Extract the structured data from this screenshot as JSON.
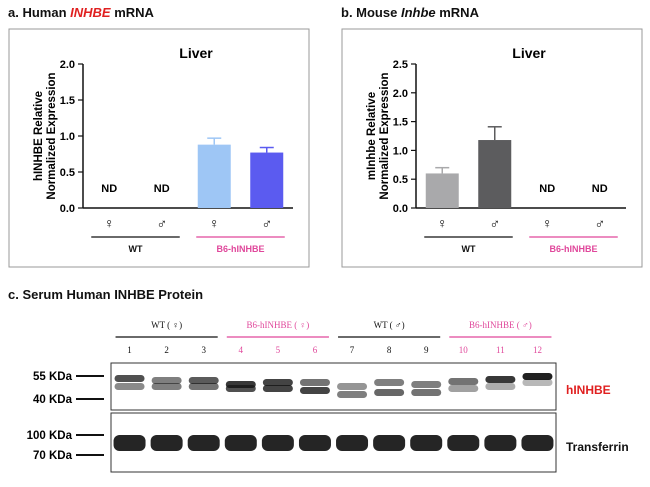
{
  "panels": {
    "a": {
      "title_prefix": "a. Human ",
      "title_gene": "INHBE",
      "title_suffix": " mRNA"
    },
    "b": {
      "title_prefix": "b. Mouse ",
      "title_gene": "Inhbe",
      "title_suffix": " mRNA"
    },
    "c": {
      "title": "c. Serum Human INHBE Protein"
    }
  },
  "chart_data": [
    {
      "type": "bar",
      "panel": "a",
      "title": "Liver",
      "ylabel_line1": "hINHBE Relative",
      "ylabel_line2": "Normalized Expression",
      "ylim": [
        0,
        2.0
      ],
      "yticks": [
        "0.0",
        "0.5",
        "1.0",
        "1.5",
        "2.0"
      ],
      "categories": [
        "♀",
        "♂",
        "♀",
        "♂"
      ],
      "values": [
        null,
        null,
        0.88,
        0.77
      ],
      "errors": [
        null,
        null,
        0.09,
        0.07
      ],
      "bar_labels": [
        "ND",
        "ND",
        "",
        ""
      ],
      "colors": [
        "#ffffff",
        "#ffffff",
        "#9ec6f5",
        "#5b5bf0"
      ],
      "groups": [
        {
          "label": "WT",
          "color": "#111111",
          "span": [
            0,
            1
          ]
        },
        {
          "label": "B6-hINHBE",
          "color": "#e0479b",
          "span": [
            2,
            3
          ]
        }
      ]
    },
    {
      "type": "bar",
      "panel": "b",
      "title": "Liver",
      "ylabel_line1": "mInhbe  Relative",
      "ylabel_line2": "Normalized Expression",
      "ylim": [
        0,
        2.5
      ],
      "yticks": [
        "0.0",
        "0.5",
        "1.0",
        "1.5",
        "2.0",
        "2.5"
      ],
      "categories": [
        "♀",
        "♂",
        "♀",
        "♂"
      ],
      "values": [
        0.6,
        1.18,
        null,
        null
      ],
      "errors": [
        0.1,
        0.23,
        null,
        null
      ],
      "bar_labels": [
        "",
        "",
        "ND",
        "ND"
      ],
      "colors": [
        "#a9a9ab",
        "#5c5c5e",
        "#ffffff",
        "#ffffff"
      ],
      "groups": [
        {
          "label": "WT",
          "color": "#111111",
          "span": [
            0,
            1
          ]
        },
        {
          "label": "B6-hINHBE",
          "color": "#e0479b",
          "span": [
            2,
            3
          ]
        }
      ]
    }
  ],
  "blot": {
    "groups": [
      {
        "label": "WT ( ♀)",
        "color": "#111111"
      },
      {
        "label": "B6-hINHBE ( ♀)",
        "color": "#e0479b"
      },
      {
        "label": "WT ( ♂)",
        "color": "#111111"
      },
      {
        "label": "B6-hINHBE ( ♂)",
        "color": "#e0479b"
      }
    ],
    "lanes": [
      "1",
      "2",
      "3",
      "4",
      "5",
      "6",
      "7",
      "8",
      "9",
      "10",
      "11",
      "12"
    ],
    "upper_markers": [
      "55 KDa",
      "40 KDa"
    ],
    "lower_markers": [
      "100 KDa",
      "70 KDa"
    ],
    "upper_label": "hINHBE",
    "upper_label_color": "#e02020",
    "lower_label": "Transferrin"
  }
}
